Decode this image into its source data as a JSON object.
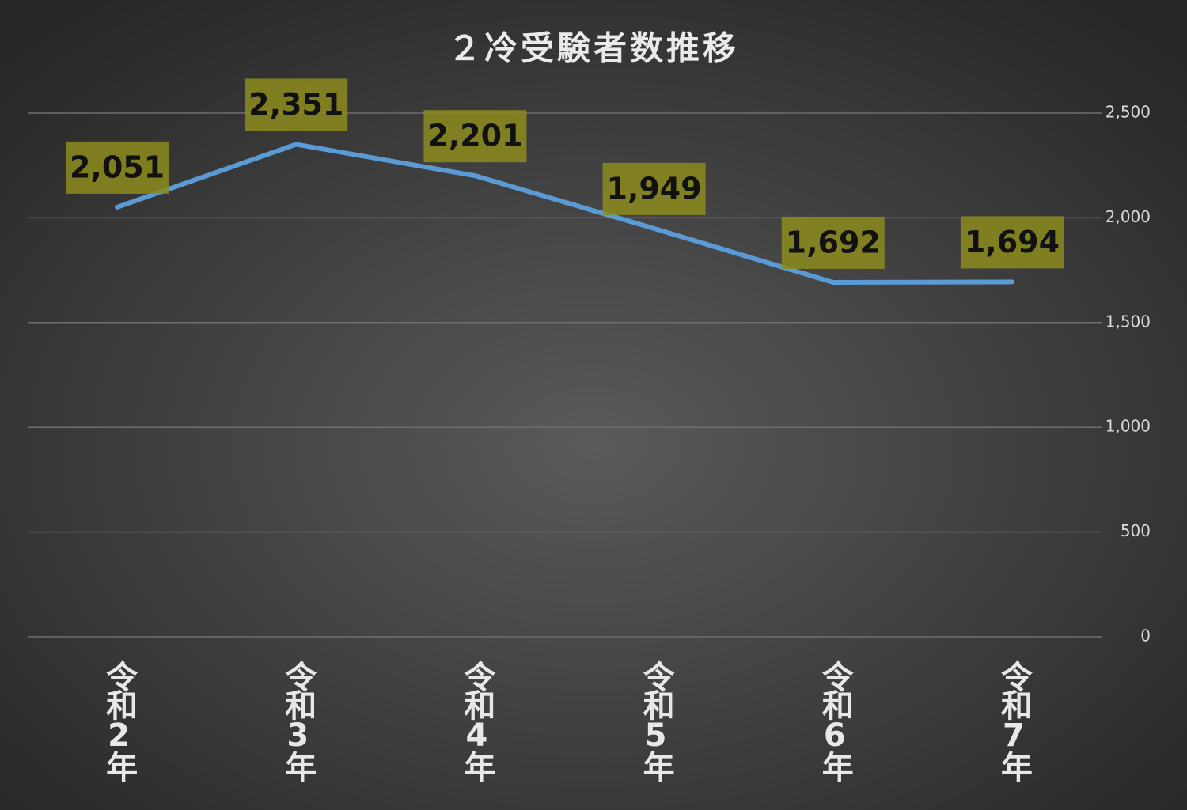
{
  "chart_data": {
    "type": "line",
    "title": "２冷受験者数推移",
    "categories": [
      "令和2年",
      "令和3年",
      "令和4年",
      "令和5年",
      "令和6年",
      "令和7年"
    ],
    "values": [
      2051,
      2351,
      2201,
      1949,
      1692,
      1694
    ],
    "value_labels": [
      "2,051",
      "2,351",
      "2,201",
      "1,949",
      "1,692",
      "1,694"
    ],
    "color": "#5b9bd5",
    "label_box_color": "#8c8c1e",
    "ylim": [
      0,
      2500
    ],
    "yticks": [
      0,
      500,
      {
        "value": 1000,
        "label": "1,000"
      },
      {
        "value": 1500,
        "label": "1,500"
      },
      {
        "value": 2000,
        "label": "2,000"
      },
      {
        "value": 2500,
        "label": "2,500"
      }
    ],
    "y_axis_side": "right",
    "grid": true
  }
}
